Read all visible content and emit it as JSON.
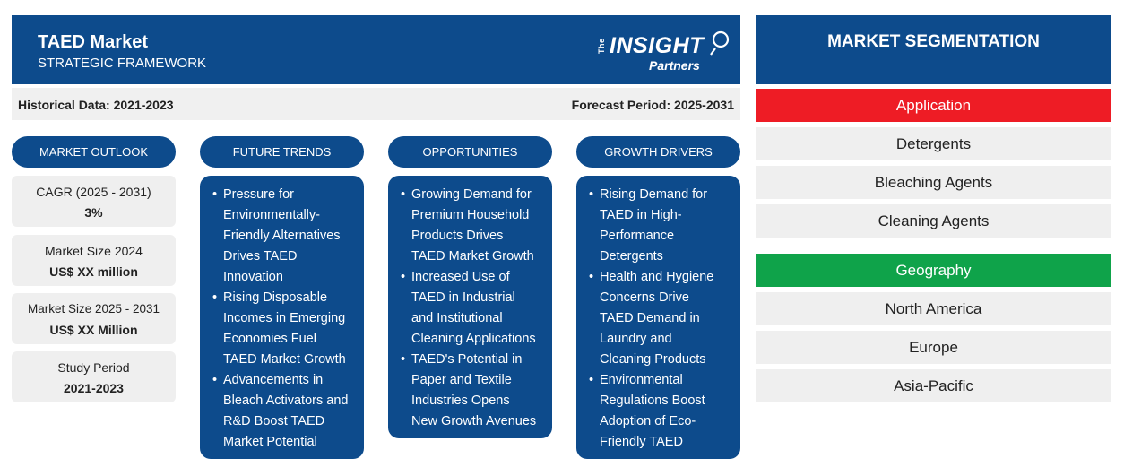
{
  "header": {
    "title": "TAED Market",
    "subtitle": "STRATEGIC FRAMEWORK",
    "logo": {
      "the": "The",
      "insight": "INSIGHT",
      "partners": "Partners"
    }
  },
  "period": {
    "historical": "Historical Data: 2021-2023",
    "forecast": "Forecast Period: 2025-2031"
  },
  "columns": {
    "outlook": "MARKET OUTLOOK",
    "trends": "FUTURE TRENDS",
    "opportunities": "OPPORTUNITIES",
    "drivers": "GROWTH DRIVERS"
  },
  "outlook": [
    {
      "label": "CAGR (2025 - 2031)",
      "value": "3%"
    },
    {
      "label": "Market Size 2024",
      "value": "US$ XX million"
    },
    {
      "label": "Market Size 2025 - 2031",
      "value": "US$ XX Million"
    },
    {
      "label": "Study Period",
      "value": "2021-2023"
    }
  ],
  "trends": [
    [
      "Pressure for",
      "Environmentally-",
      "Friendly Alternatives",
      "Drives TAED",
      "Innovation"
    ],
    [
      "Rising Disposable",
      "Incomes in Emerging",
      "Economies Fuel",
      "TAED Market Growth"
    ],
    [
      "Advancements in",
      "Bleach Activators and",
      "R&D Boost TAED",
      "Market Potential"
    ]
  ],
  "opportunities": [
    [
      "Growing Demand for",
      "Premium Household",
      "Products Drives",
      "TAED Market Growth"
    ],
    [
      "Increased Use of",
      "TAED in Industrial",
      "and Institutional",
      "Cleaning Applications"
    ],
    [
      "TAED's Potential in",
      "Paper and Textile",
      "Industries Opens",
      "New Growth Avenues"
    ]
  ],
  "drivers": [
    [
      "Rising Demand for",
      "TAED in High-",
      "Performance",
      "Detergents"
    ],
    [
      "Health and Hygiene",
      "Concerns Drive",
      "TAED Demand in",
      "Laundry and",
      "Cleaning Products"
    ],
    [
      "Environmental",
      "Regulations Boost",
      "Adoption of Eco-",
      "Friendly TAED"
    ]
  ],
  "segmentation": {
    "title": "MARKET SEGMENTATION",
    "application": {
      "label": "Application",
      "color": "#ee1c25",
      "items": [
        "Detergents",
        "Bleaching Agents",
        "Cleaning Agents"
      ]
    },
    "geography": {
      "label": "Geography",
      "color": "#0fa34a",
      "items": [
        "North America",
        "Europe",
        "Asia-Pacific"
      ]
    }
  }
}
